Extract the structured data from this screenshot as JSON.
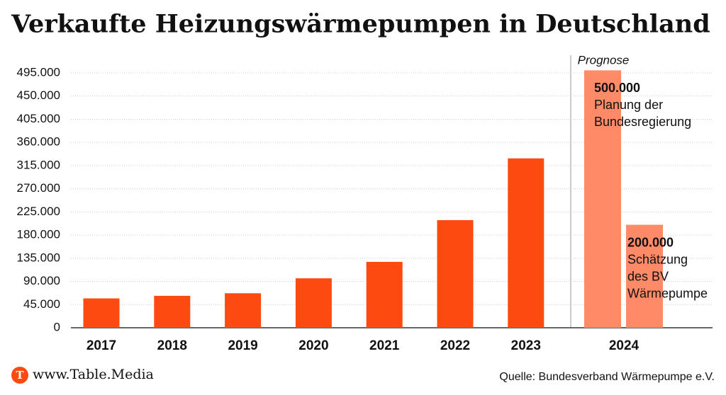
{
  "chart_data": {
    "type": "bar",
    "title": "Verkaufte Heizungswärmepumpen in Deutschland",
    "categories": [
      "2017",
      "2018",
      "2019",
      "2020",
      "2021",
      "2022",
      "2023"
    ],
    "values": [
      57000,
      62000,
      67000,
      96000,
      128000,
      209000,
      329000
    ],
    "color": "#fc4a10",
    "ylim": [
      0,
      495000
    ],
    "yticks": [
      0,
      {
        "value": 45000,
        "label": "45.000"
      },
      {
        "value": 90000,
        "label": "90.000"
      },
      {
        "value": 135000,
        "label": "135.000"
      },
      {
        "value": 180000,
        "label": "180.000"
      },
      {
        "value": 225000,
        "label": "225.000"
      },
      {
        "value": 270000,
        "label": "270.000"
      },
      {
        "value": 315000,
        "label": "315.000"
      },
      {
        "value": 360000,
        "label": "360.000"
      },
      {
        "value": 405000,
        "label": "405.000"
      },
      {
        "value": 450000,
        "label": "450.000"
      },
      {
        "value": 495000,
        "label": "495.000"
      }
    ],
    "grid": true,
    "forecast": {
      "label": "Prognose",
      "category": "2024",
      "color": "#ff8a67",
      "values": [
        500000,
        200000
      ],
      "value_labels": [
        "500.000",
        "200.000"
      ],
      "notes": [
        [
          "Planung der",
          "Bundesregierung"
        ],
        [
          "Schätzung",
          "des BV",
          "Wärmepumpe"
        ]
      ]
    }
  },
  "footer": {
    "brand": "www.Table.Media",
    "logo": "T",
    "source": "Quelle: Bundesverband Wärmepumpe e.V."
  }
}
